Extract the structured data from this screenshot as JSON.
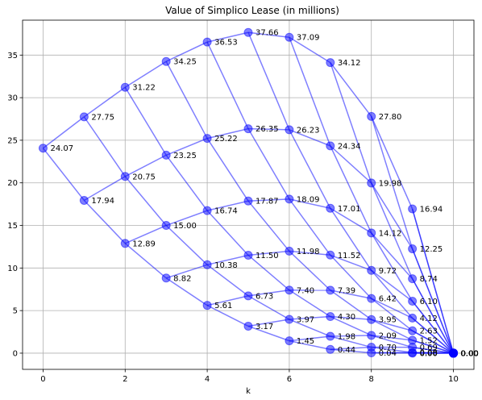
{
  "chart_data": {
    "type": "scatter",
    "title": "Value of Simplico Lease (in millions)",
    "xlabel": "k",
    "ylabel": "",
    "xlim": [
      -0.5,
      10.5
    ],
    "ylim": [
      -1.9,
      39.1
    ],
    "grid": true,
    "x_ticks": [
      0,
      2,
      4,
      6,
      8,
      10
    ],
    "y_ticks": [
      0,
      5,
      10,
      15,
      20,
      25,
      30,
      35
    ],
    "nodes": [
      [
        {
          "v": 24.07,
          "label": "24.07"
        }
      ],
      [
        {
          "v": 27.75,
          "label": "27.75"
        },
        {
          "v": 17.94,
          "label": "17.94"
        }
      ],
      [
        {
          "v": 31.22,
          "label": "31.22"
        },
        {
          "v": 20.75,
          "label": "20.75"
        },
        {
          "v": 12.89,
          "label": "12.89"
        }
      ],
      [
        {
          "v": 34.25,
          "label": "34.25"
        },
        {
          "v": 23.25,
          "label": "23.25"
        },
        {
          "v": 15.0,
          "label": "15.00"
        },
        {
          "v": 8.82,
          "label": "8.82"
        }
      ],
      [
        {
          "v": 36.53,
          "label": "36.53"
        },
        {
          "v": 25.22,
          "label": "25.22"
        },
        {
          "v": 16.74,
          "label": "16.74"
        },
        {
          "v": 10.38,
          "label": "10.38"
        },
        {
          "v": 5.61,
          "label": "5.61"
        }
      ],
      [
        {
          "v": 37.66,
          "label": "37.66"
        },
        {
          "v": 26.35,
          "label": "26.35"
        },
        {
          "v": 17.87,
          "label": "17.87"
        },
        {
          "v": 11.5,
          "label": "11.50"
        },
        {
          "v": 6.73,
          "label": "6.73"
        },
        {
          "v": 3.17,
          "label": "3.17"
        }
      ],
      [
        {
          "v": 37.09,
          "label": "37.09"
        },
        {
          "v": 26.23,
          "label": "26.23"
        },
        {
          "v": 18.09,
          "label": "18.09"
        },
        {
          "v": 11.98,
          "label": "11.98"
        },
        {
          "v": 7.4,
          "label": "7.40"
        },
        {
          "v": 3.97,
          "label": "3.97"
        },
        {
          "v": 1.45,
          "label": "1.45"
        }
      ],
      [
        {
          "v": 34.12,
          "label": "34.12"
        },
        {
          "v": 24.34,
          "label": "24.34"
        },
        {
          "v": 17.01,
          "label": "17.01"
        },
        {
          "v": 11.52,
          "label": "11.52"
        },
        {
          "v": 7.39,
          "label": "7.39"
        },
        {
          "v": 4.3,
          "label": "4.30"
        },
        {
          "v": 1.98,
          "label": "1.98"
        },
        {
          "v": 0.44,
          "label": "0.44"
        }
      ],
      [
        {
          "v": 27.8,
          "label": "27.80"
        },
        {
          "v": 19.98,
          "label": "19.98"
        },
        {
          "v": 14.12,
          "label": "14.12"
        },
        {
          "v": 9.72,
          "label": "9.72"
        },
        {
          "v": 6.42,
          "label": "6.42"
        },
        {
          "v": 3.95,
          "label": "3.95"
        },
        {
          "v": 2.09,
          "label": "2.09"
        },
        {
          "v": 0.7,
          "label": "0.70"
        },
        {
          "v": 0.04,
          "label": "0.04"
        }
      ],
      [
        {
          "v": 16.94,
          "label": "16.94"
        },
        {
          "v": 12.25,
          "label": "12.25"
        },
        {
          "v": 8.74,
          "label": "8.74"
        },
        {
          "v": 6.1,
          "label": "6.10"
        },
        {
          "v": 4.12,
          "label": "4.12"
        },
        {
          "v": 2.63,
          "label": "2.63"
        },
        {
          "v": 1.52,
          "label": "1.52"
        },
        {
          "v": 0.69,
          "label": "0.69"
        },
        {
          "v": 0.08,
          "label": "0.08"
        },
        {
          "v": 0.0,
          "label": "0.00"
        }
      ],
      [
        {
          "v": 0.0,
          "label": "0.00"
        },
        {
          "v": 0.0,
          "label": "0.00"
        },
        {
          "v": 0.0,
          "label": "0.00"
        },
        {
          "v": 0.0,
          "label": "0.00"
        },
        {
          "v": 0.0,
          "label": "0.00"
        },
        {
          "v": 0.0,
          "label": "0.00"
        },
        {
          "v": 0.0,
          "label": "0.00"
        },
        {
          "v": 0.0,
          "label": "0.00"
        },
        {
          "v": 0.0,
          "label": "0.00"
        },
        {
          "v": 0.0,
          "label": "0.00"
        },
        {
          "v": 0.0,
          "label": "0.00"
        }
      ]
    ],
    "colors": {
      "node": "#0000ff",
      "edge": "#0000ff",
      "grid": "#b0b0b0"
    }
  }
}
